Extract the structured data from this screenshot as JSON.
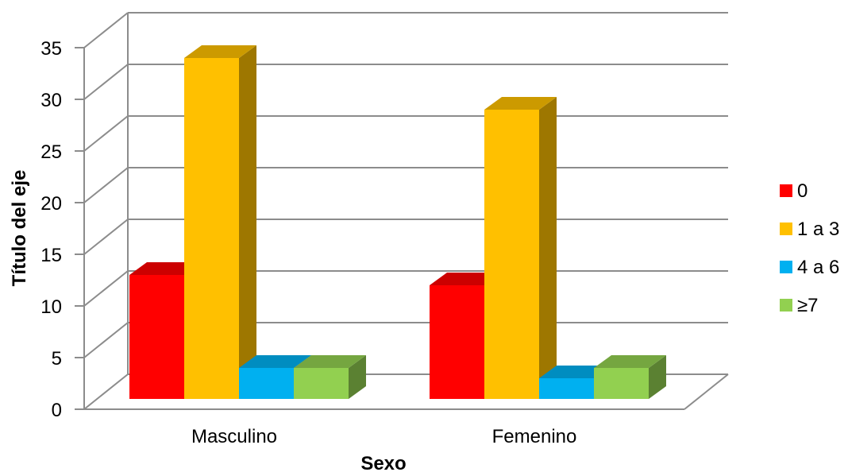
{
  "chart_data": {
    "type": "bar",
    "style": "3d-clustered-column",
    "title": "",
    "xlabel": "Sexo",
    "ylabel": "Título del eje",
    "categories": [
      "Masculino",
      "Femenino"
    ],
    "yticks": [
      "0",
      "5",
      "10",
      "15",
      "20",
      "25",
      "30",
      "35"
    ],
    "ylim": [
      0,
      35
    ],
    "grid": true,
    "legend": "right",
    "series": [
      {
        "name": "0",
        "values": [
          12,
          11
        ],
        "color": "#FF0000"
      },
      {
        "name": "1 a 3",
        "values": [
          33,
          28
        ],
        "color": "#FFC000"
      },
      {
        "name": "4 a 6",
        "values": [
          3,
          2
        ],
        "color": "#00B0F0"
      },
      {
        "name": "≥7",
        "values": [
          3,
          3
        ],
        "color": "#92D050"
      }
    ]
  }
}
